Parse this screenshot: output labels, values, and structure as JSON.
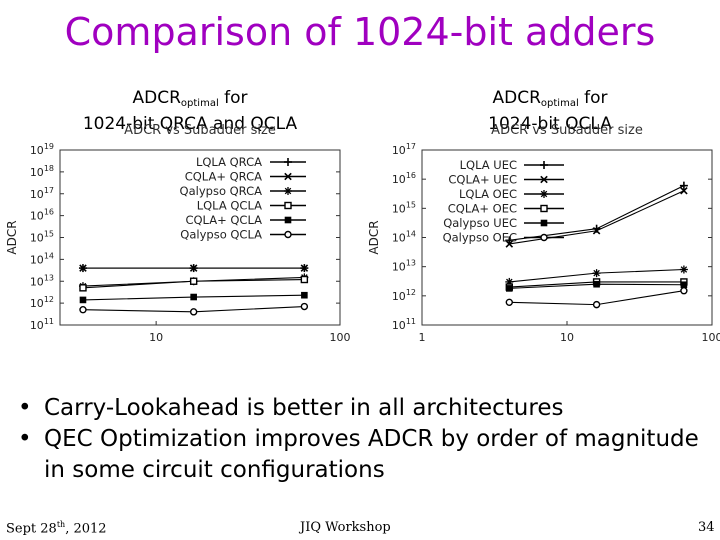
{
  "slide": {
    "title": "Comparison of 1024-bit adders",
    "caption_left": {
      "prefix": "ADCR",
      "sub": "optimal",
      "suffix": " for",
      "line2": "1024-bit QRCA and QCLA"
    },
    "caption_right": {
      "prefix": "ADCR",
      "sub": "optimal",
      "suffix": " for",
      "line2": "1024-bit QCLA"
    },
    "bullets": [
      "Carry-Lookahead is better in all architectures",
      "QEC Optimization improves ADCR by order of magnitude in some circuit configurations"
    ],
    "footer": {
      "date_prefix": "Sept 28",
      "date_sup": "th",
      "date_suffix": ", 2012",
      "event": "JIQ Workshop",
      "page": "34"
    }
  },
  "colors": {
    "title": "#a000c0",
    "series": "#000000",
    "axis": "#333333"
  },
  "chart_data": [
    {
      "type": "line",
      "title": "ADCR vs Subadder size",
      "ylabel": "ADCR",
      "xlabel": "",
      "x_scale": "log",
      "y_scale": "log",
      "xlim": [
        3,
        100
      ],
      "ylim": [
        100000000000.0,
        1e+19
      ],
      "x_ticks": [
        {
          "value": 10,
          "label": "10"
        },
        {
          "value": 100,
          "label": "100"
        }
      ],
      "y_ticks": [
        {
          "value": 1e+19,
          "base": "10",
          "exp": "19"
        },
        {
          "value": 1e+18,
          "base": "10",
          "exp": "18"
        },
        {
          "value": 1e+17,
          "base": "10",
          "exp": "17"
        },
        {
          "value": 1e+16,
          "base": "10",
          "exp": "16"
        },
        {
          "value": 1000000000000000.0,
          "base": "10",
          "exp": "15"
        },
        {
          "value": 100000000000000.0,
          "base": "10",
          "exp": "14"
        },
        {
          "value": 10000000000000.0,
          "base": "10",
          "exp": "13"
        },
        {
          "value": 1000000000000.0,
          "base": "10",
          "exp": "12"
        },
        {
          "value": 100000000000.0,
          "base": "10",
          "exp": "11"
        }
      ],
      "legend_position": "top-right",
      "series": [
        {
          "name": "LQLA QRCA",
          "marker": "plus",
          "x": [
            4,
            16,
            64
          ],
          "values": [
            40000000000000.0,
            40000000000000.0,
            40000000000000.0
          ]
        },
        {
          "name": "CQLA+ QRCA",
          "marker": "x",
          "x": [
            4,
            16,
            64
          ],
          "values": [
            40000000000000.0,
            40000000000000.0,
            40000000000000.0
          ]
        },
        {
          "name": "Qalypso QRCA",
          "marker": "star",
          "x": [
            4,
            16,
            64
          ],
          "values": [
            6000000000000.0,
            10000000000000.0,
            15000000000000.0
          ]
        },
        {
          "name": "LQLA QCLA",
          "marker": "square",
          "x": [
            4,
            16,
            64
          ],
          "values": [
            5000000000000.0,
            10000000000000.0,
            12000000000000.0
          ]
        },
        {
          "name": "CQLA+ QCLA",
          "marker": "filled-square",
          "x": [
            4,
            16,
            64
          ],
          "values": [
            1400000000000.0,
            1900000000000.0,
            2300000000000.0
          ]
        },
        {
          "name": "Qalypso QCLA",
          "marker": "circle",
          "x": [
            4,
            16,
            64
          ],
          "values": [
            500000000000.0,
            400000000000.0,
            700000000000.0
          ]
        }
      ]
    },
    {
      "type": "line",
      "title": "ADCR vs Subadder size",
      "ylabel": "ADCR",
      "xlabel": "",
      "x_scale": "log",
      "y_scale": "log",
      "xlim": [
        1,
        100
      ],
      "ylim": [
        100000000000.0,
        1e+17
      ],
      "x_ticks": [
        {
          "value": 1,
          "label": "1"
        },
        {
          "value": 10,
          "label": "10"
        },
        {
          "value": 100,
          "label": "100"
        }
      ],
      "y_ticks": [
        {
          "value": 1e+17,
          "base": "10",
          "exp": "17"
        },
        {
          "value": 1e+16,
          "base": "10",
          "exp": "16"
        },
        {
          "value": 1000000000000000.0,
          "base": "10",
          "exp": "15"
        },
        {
          "value": 100000000000000.0,
          "base": "10",
          "exp": "14"
        },
        {
          "value": 10000000000000.0,
          "base": "10",
          "exp": "13"
        },
        {
          "value": 1000000000000.0,
          "base": "10",
          "exp": "12"
        },
        {
          "value": 100000000000.0,
          "base": "10",
          "exp": "11"
        }
      ],
      "legend_position": "top-left",
      "series": [
        {
          "name": "LQLA UEC",
          "marker": "plus",
          "x": [
            4,
            16,
            64
          ],
          "values": [
            80000000000000.0,
            200000000000000.0,
            6000000000000000.0
          ]
        },
        {
          "name": "CQLA+ UEC",
          "marker": "x",
          "x": [
            4,
            16,
            64
          ],
          "values": [
            60000000000000.0,
            170000000000000.0,
            4000000000000000.0
          ]
        },
        {
          "name": "LQLA OEC",
          "marker": "star",
          "x": [
            4,
            16,
            64
          ],
          "values": [
            3000000000000.0,
            6000000000000.0,
            8000000000000.0
          ]
        },
        {
          "name": "CQLA+ OEC",
          "marker": "square",
          "x": [
            4,
            16,
            64
          ],
          "values": [
            2000000000000.0,
            3000000000000.0,
            3000000000000.0
          ]
        },
        {
          "name": "Qalypso UEC",
          "marker": "filled-square",
          "x": [
            4,
            16,
            64
          ],
          "values": [
            1800000000000.0,
            2500000000000.0,
            2400000000000.0
          ]
        },
        {
          "name": "Qalypso OEC",
          "marker": "circle",
          "x": [
            4,
            16,
            64
          ],
          "values": [
            600000000000.0,
            500000000000.0,
            1500000000000.0
          ]
        }
      ]
    }
  ]
}
